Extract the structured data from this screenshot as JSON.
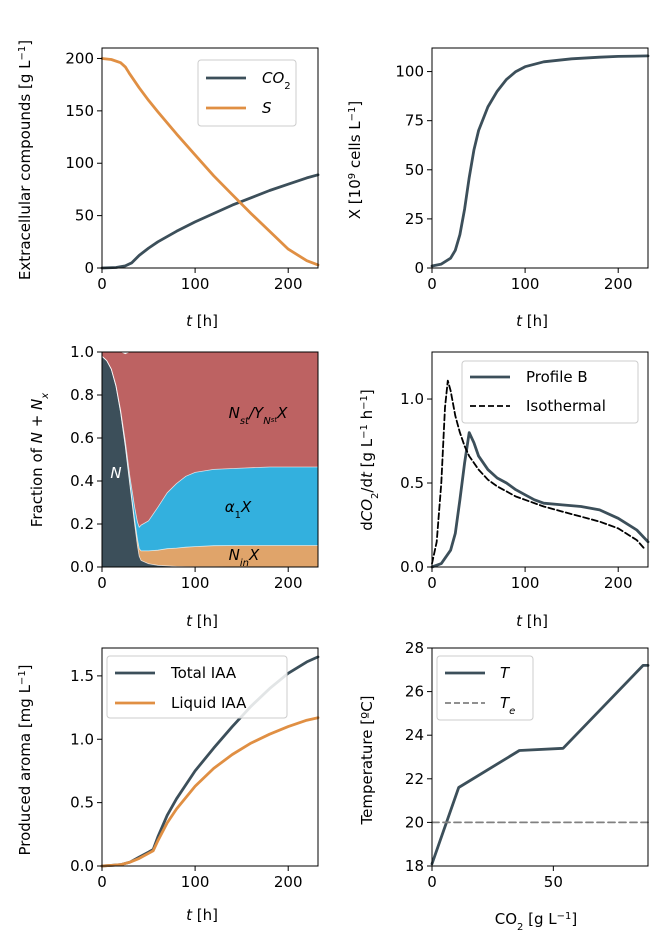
{
  "chart_data": [
    {
      "type": "line",
      "panel": "a",
      "xlabel": "t [h]",
      "ylabel": "Extracellular compounds [g L⁻¹]",
      "xlim": [
        0,
        232
      ],
      "ylim": [
        0,
        210
      ],
      "xticks": [
        0,
        100,
        200
      ],
      "yticks": [
        0,
        50,
        100,
        150,
        200
      ],
      "grid": false,
      "legend_position": "upper right",
      "series": [
        {
          "name": "CO2",
          "color": "#3c4f5a",
          "x": [
            0,
            15,
            25,
            32,
            40,
            50,
            60,
            80,
            100,
            120,
            140,
            160,
            180,
            200,
            220,
            232
          ],
          "y": [
            0,
            0.5,
            2,
            5,
            12,
            19,
            25,
            35,
            44,
            52,
            60,
            67,
            74,
            80,
            86,
            89
          ]
        },
        {
          "name": "S",
          "color": "#e08f43",
          "x": [
            0,
            10,
            20,
            25,
            30,
            40,
            50,
            60,
            80,
            100,
            120,
            140,
            160,
            180,
            200,
            220,
            232
          ],
          "y": [
            200,
            199,
            196,
            192,
            185,
            172,
            160,
            149,
            128,
            108,
            88,
            70,
            52,
            35,
            18,
            7,
            3
          ]
        }
      ]
    },
    {
      "type": "line",
      "panel": "b",
      "xlabel": "t [h]",
      "ylabel": "X [10⁹ cells L⁻¹]",
      "xlim": [
        0,
        232
      ],
      "ylim": [
        0,
        112
      ],
      "xticks": [
        0,
        100,
        200
      ],
      "yticks": [
        0,
        25,
        50,
        75,
        100
      ],
      "grid": false,
      "series": [
        {
          "name": "X",
          "color": "#3c4f5a",
          "x": [
            0,
            10,
            20,
            25,
            30,
            35,
            40,
            45,
            50,
            60,
            70,
            80,
            90,
            100,
            120,
            150,
            180,
            200,
            232
          ],
          "y": [
            1,
            2,
            5,
            9,
            17,
            30,
            46,
            60,
            70,
            82,
            90,
            96,
            100,
            102.5,
            105,
            106.5,
            107.3,
            107.7,
            108
          ]
        }
      ]
    },
    {
      "type": "area",
      "panel": "c",
      "xlabel": "t [h]",
      "ylabel": "Fraction of N + Nₓ",
      "xlim": [
        0,
        232
      ],
      "ylim": [
        0,
        1
      ],
      "xticks": [
        0,
        100,
        200
      ],
      "yticks": [
        0.0,
        0.2,
        0.4,
        0.6,
        0.8,
        1.0
      ],
      "grid": false,
      "x": [
        0,
        5,
        10,
        15,
        20,
        25,
        30,
        35,
        38,
        40,
        42,
        50,
        60,
        70,
        80,
        90,
        100,
        120,
        150,
        180,
        232
      ],
      "series": [
        {
          "name": "N",
          "color": "#3c4f5a",
          "values": [
            0.98,
            0.96,
            0.92,
            0.84,
            0.72,
            0.56,
            0.38,
            0.2,
            0.1,
            0.05,
            0.03,
            0.015,
            0.008,
            0.005,
            0.003,
            0.002,
            0.001,
            0.001,
            0.0,
            0.0,
            0.0
          ]
        },
        {
          "name": "NinX",
          "color": "#e0a46a",
          "values": [
            0.0,
            0.0,
            0.0,
            0.0,
            0.0,
            0.005,
            0.01,
            0.02,
            0.03,
            0.035,
            0.045,
            0.06,
            0.07,
            0.08,
            0.085,
            0.09,
            0.094,
            0.098,
            0.1,
            0.1,
            0.1
          ]
        },
        {
          "name": "a1X",
          "color": "#33b0de",
          "values": [
            0.0,
            0.0,
            0.0,
            0.005,
            0.01,
            0.02,
            0.03,
            0.06,
            0.08,
            0.1,
            0.12,
            0.14,
            0.2,
            0.26,
            0.3,
            0.33,
            0.345,
            0.355,
            0.36,
            0.365,
            0.365
          ]
        },
        {
          "name": "NstX",
          "color": "#bd6262",
          "values": [
            0.02,
            0.04,
            0.08,
            0.155,
            0.27,
            0.405,
            0.58,
            0.72,
            0.79,
            0.815,
            0.805,
            0.785,
            0.722,
            0.655,
            0.612,
            0.578,
            0.56,
            0.546,
            0.54,
            0.535,
            0.535
          ]
        }
      ],
      "labels": {
        "N": "N",
        "nst_main": "N",
        "nst_sub": "st",
        "nst_slash": "/Y",
        "nst_ysub": "N",
        "nst_ysubsub": "st",
        "nst_x": "X",
        "a1_main": "α",
        "a1_sub": "1",
        "a1_x": "X",
        "nin_main": "N",
        "nin_sub": "in",
        "nin_x": "X"
      }
    },
    {
      "type": "line",
      "panel": "d",
      "xlabel": "t [h]",
      "ylabel": "dCO₂/dt [g L⁻¹ h⁻¹]",
      "xlim": [
        0,
        232
      ],
      "ylim": [
        0,
        1.28
      ],
      "xticks": [
        0,
        100,
        200
      ],
      "yticks": [
        0.0,
        0.5,
        1.0
      ],
      "grid": false,
      "legend_position": "upper right",
      "series": [
        {
          "name": "Profile B",
          "color": "#3c4f5a",
          "dash": "solid",
          "x": [
            0,
            10,
            20,
            25,
            30,
            35,
            40,
            45,
            50,
            60,
            70,
            80,
            90,
            100,
            110,
            120,
            140,
            160,
            180,
            200,
            220,
            232
          ],
          "y": [
            0.0,
            0.02,
            0.1,
            0.2,
            0.4,
            0.62,
            0.8,
            0.74,
            0.66,
            0.58,
            0.53,
            0.5,
            0.46,
            0.43,
            0.4,
            0.38,
            0.37,
            0.36,
            0.34,
            0.29,
            0.22,
            0.15
          ]
        },
        {
          "name": "Isothermal",
          "color": "#000000",
          "dash": "dashed",
          "x": [
            0,
            5,
            10,
            14,
            17,
            20,
            25,
            30,
            35,
            40,
            50,
            60,
            70,
            80,
            90,
            100,
            120,
            140,
            160,
            180,
            200,
            220,
            228
          ],
          "y": [
            0.02,
            0.15,
            0.5,
            0.95,
            1.11,
            1.05,
            0.9,
            0.8,
            0.72,
            0.66,
            0.58,
            0.52,
            0.48,
            0.45,
            0.42,
            0.4,
            0.36,
            0.33,
            0.3,
            0.27,
            0.23,
            0.16,
            0.11
          ]
        }
      ]
    },
    {
      "type": "line",
      "panel": "e",
      "xlabel": "t [h]",
      "ylabel": "Produced aroma [mg L⁻¹]",
      "xlim": [
        0,
        232
      ],
      "ylim": [
        0,
        1.72
      ],
      "xticks": [
        0,
        100,
        200
      ],
      "yticks": [
        0.0,
        0.5,
        1.0,
        1.5
      ],
      "grid": false,
      "legend_position": "upper left",
      "series": [
        {
          "name": "Total IAA",
          "color": "#3c4f5a",
          "x": [
            0,
            10,
            20,
            30,
            40,
            50,
            55,
            60,
            70,
            80,
            100,
            120,
            140,
            160,
            180,
            200,
            220,
            232
          ],
          "y": [
            0,
            0.005,
            0.01,
            0.03,
            0.07,
            0.11,
            0.13,
            0.23,
            0.4,
            0.53,
            0.75,
            0.93,
            1.1,
            1.26,
            1.4,
            1.52,
            1.61,
            1.65
          ]
        },
        {
          "name": "Liquid IAA",
          "color": "#e08f43",
          "x": [
            0,
            10,
            20,
            30,
            40,
            50,
            55,
            60,
            70,
            80,
            100,
            120,
            140,
            160,
            180,
            200,
            220,
            232
          ],
          "y": [
            0,
            0.005,
            0.01,
            0.03,
            0.06,
            0.1,
            0.12,
            0.2,
            0.34,
            0.45,
            0.63,
            0.77,
            0.88,
            0.97,
            1.04,
            1.1,
            1.15,
            1.17
          ]
        }
      ]
    },
    {
      "type": "line",
      "panel": "f",
      "xlabel": "CO₂ [g L⁻¹]",
      "ylabel": "Temperature [ºC]",
      "xlim": [
        0,
        89
      ],
      "ylim": [
        18,
        28
      ],
      "xticks": [
        0,
        50
      ],
      "yticks": [
        18,
        20,
        22,
        24,
        26,
        28
      ],
      "grid": false,
      "legend_position": "upper left",
      "series": [
        {
          "name": "T",
          "color": "#3c4f5a",
          "dash": "solid",
          "x": [
            0,
            11,
            36,
            54,
            87,
            89
          ],
          "y": [
            18.1,
            21.6,
            23.3,
            23.4,
            27.2,
            27.2
          ]
        },
        {
          "name": "Te",
          "color": "#808080",
          "dash": "dashed",
          "x": [
            0,
            89
          ],
          "y": [
            20,
            20
          ]
        }
      ]
    }
  ],
  "legend_text": {
    "a_co2_main": "CO",
    "a_co2_sub": "2",
    "a_s": "S",
    "d_profile_b": "Profile B",
    "d_isothermal": "Isothermal",
    "e_total": "Total IAA",
    "e_liquid": "Liquid IAA",
    "f_t": "T",
    "f_te_main": "T",
    "f_te_sub": "e"
  },
  "axis_text": {
    "t": "t",
    "h_unit": " [h]",
    "a_ylabel_main": "Extracellular compounds [g L",
    "a_ylabel_sup": "−1",
    "a_ylabel_end": "]",
    "b_ylabel_a": "X [10",
    "b_ylabel_sup1": "9",
    "b_ylabel_b": " cells L",
    "b_ylabel_sup2": "−1",
    "b_ylabel_end": "]",
    "c_ylabel_a": "Fraction of ",
    "c_ylabel_n": "N",
    "c_ylabel_plus": " + ",
    "c_ylabel_nx": "N",
    "c_ylabel_xsub": "x",
    "d_ylabel_a": "d",
    "d_ylabel_co": "CO",
    "d_ylabel_sub": "2",
    "d_ylabel_dt": "/d",
    "d_ylabel_t": "t",
    "d_ylabel_unit": " [g L",
    "d_ylabel_sup1": "−1",
    "d_ylabel_h": " h",
    "d_ylabel_sup2": "−1",
    "d_ylabel_end": "]",
    "e_ylabel_main": "Produced aroma [mg L",
    "e_ylabel_sup": "−1",
    "e_ylabel_end": "]",
    "f_ylabel": "Temperature [ºC]",
    "f_xlabel_co": "CO",
    "f_xlabel_sub": "2",
    "f_xlabel_unit": " [g L",
    "f_xlabel_sup": "−1",
    "f_xlabel_end": "]"
  }
}
